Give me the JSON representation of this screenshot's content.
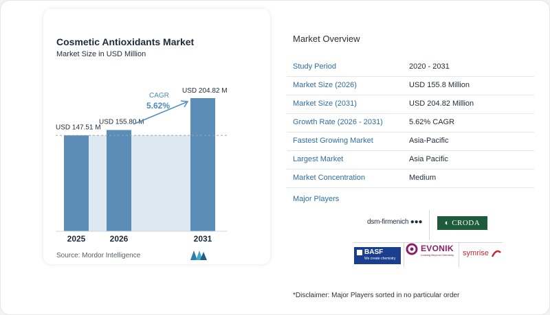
{
  "chart": {
    "title": "Cosmetic Antioxidants Market",
    "subtitle": "Market Size in USD Million",
    "source": "Source:  Mordor Intelligence",
    "cagr_label": "CAGR",
    "cagr_value": "5.62%"
  },
  "chart_data": {
    "type": "bar",
    "categories": [
      "2025",
      "2026",
      "2031"
    ],
    "values": [
      147.51,
      155.8,
      204.82
    ],
    "value_labels": [
      "USD 147.51 M",
      "USD 155.80 M",
      "USD 204.82 M"
    ],
    "title": "Cosmetic Antioxidants Market",
    "subtitle": "Market Size in USD Million",
    "ylim": [
      0,
      220
    ],
    "grid": false,
    "bar_color": "#5b8db8",
    "band_color": "#dde8f1"
  },
  "overview": {
    "title": "Market Overview",
    "rows": [
      {
        "label": "Study Period",
        "value": "2020 - 2031"
      },
      {
        "label": "Market Size (2026)",
        "value": "USD 155.8 Million"
      },
      {
        "label": "Market Size (2031)",
        "value": "USD 204.82 Million"
      },
      {
        "label": "Growth Rate (2026 - 2031)",
        "value": "5.62% CAGR"
      },
      {
        "label": "Fastest Growing Market",
        "value": "Asia-Pacific"
      },
      {
        "label": "Largest Market",
        "value": "Asia Pacific"
      },
      {
        "label": "Market Concentration",
        "value": "Medium"
      }
    ],
    "players_title": "Major Players",
    "players": {
      "dsm": "dsm-firmenich",
      "croda": "CRODA",
      "basf": "BASF",
      "basf_tagline": "We create chemistry",
      "evonik": "EVONIK",
      "evonik_tagline": "Leading Beyond Chemistry",
      "symrise": "symrise"
    },
    "disclaimer": "*Disclaimer: Major Players sorted in no particular order"
  },
  "colors": {
    "accent_blue": "#2e6da4",
    "bar": "#5b8db8",
    "croda_green": "#1d5b3a",
    "basf_blue": "#1b3f8f",
    "evonik_purple": "#8a1f66",
    "symrise_red": "#c0282d"
  }
}
